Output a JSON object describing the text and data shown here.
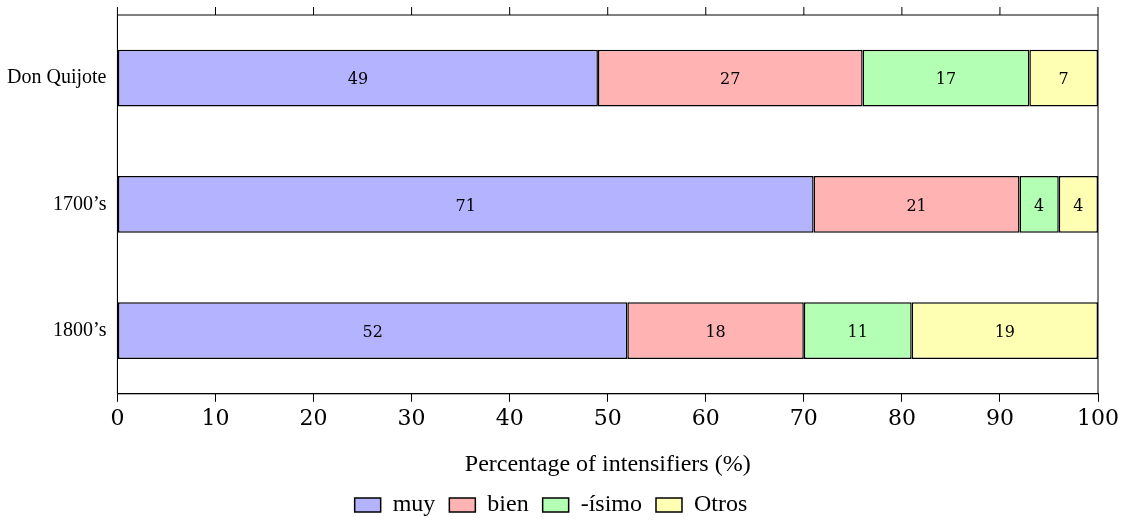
{
  "chart_data": {
    "type": "bar",
    "orientation": "horizontal",
    "stacked": true,
    "xlabel": "Percentage of intensifiers (%)",
    "categories": [
      "Don Quijote",
      "1700’s",
      "1800’s"
    ],
    "series": [
      {
        "name": "muy",
        "color": "#b3b3ff",
        "values": [
          49,
          71,
          52
        ]
      },
      {
        "name": "bien",
        "color": "#ffb3b3",
        "values": [
          27,
          21,
          18
        ]
      },
      {
        "name": "-ísimo",
        "color": "#b3ffb3",
        "values": [
          17,
          4,
          11
        ]
      },
      {
        "name": "Otros",
        "color": "#ffffb3",
        "values": [
          7,
          4,
          19
        ]
      }
    ],
    "xlim": [
      0,
      100
    ],
    "xticks": [
      0,
      10,
      20,
      30,
      40,
      50,
      60,
      70,
      80,
      90,
      100
    ],
    "data_labels": true,
    "grid": false,
    "legend": "bottom"
  }
}
